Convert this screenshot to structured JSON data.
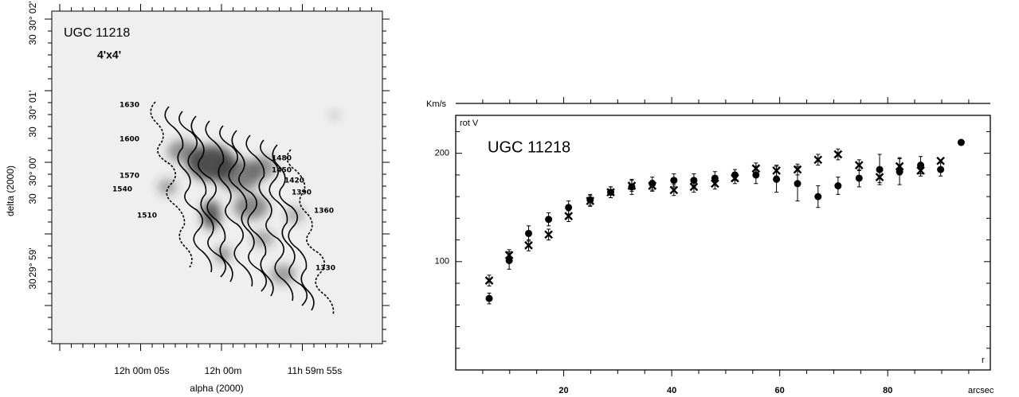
{
  "sky_map": {
    "title": "UGC 11218",
    "size": "4'x4'",
    "y_axis_label": "delta (2000)",
    "x_axis_label": "alpha (2000)",
    "y_tick_labels": [
      "30° 02'",
      "30",
      "30° 01'",
      "30",
      "30° 00'",
      "30",
      "29° 59'",
      "30"
    ],
    "x_tick_labels": [
      "12h 00m 05s",
      "12h 00m",
      "11h 59m 55s"
    ],
    "contour_labels": [
      1630,
      1600,
      1480,
      1450,
      1420,
      1390,
      1360,
      1330,
      1570,
      1540,
      1510
    ]
  },
  "chart_data": {
    "type": "scatter",
    "title": "UGC 11218",
    "y_axis_label": "rot V",
    "y_unit": "Km/s",
    "x_axis_label": "r",
    "x_unit": "arcsec",
    "xlim": [
      0,
      99
    ],
    "ylim": [
      0,
      235
    ],
    "xticks": [
      20,
      40,
      60,
      80
    ],
    "yticks": [
      100,
      200
    ],
    "xminor_ticks": [
      5,
      10,
      15,
      25,
      30,
      35,
      45,
      50,
      55,
      65,
      70,
      75,
      85,
      90,
      95
    ],
    "yminor_ticks": [
      20,
      40,
      60,
      80,
      120,
      140,
      160,
      180,
      220
    ],
    "series": [
      {
        "marker": "circle",
        "color": "#000000",
        "x": [
          6.2,
          9.9,
          13.5,
          17.2,
          20.9,
          24.9,
          28.7,
          32.6,
          36.4,
          40.4,
          44.1,
          48,
          51.7,
          55.6,
          59.4,
          63.3,
          67.1,
          70.8,
          74.7,
          78.5,
          82.2,
          86.1,
          89.8,
          93.6
        ],
        "values": [
          66,
          101,
          126,
          139,
          150,
          157,
          164,
          169,
          172,
          175,
          175,
          177,
          180,
          180,
          176,
          172,
          160,
          170,
          177,
          185,
          183,
          189,
          185,
          210
        ],
        "errors": [
          5,
          8,
          7,
          6,
          6,
          5,
          5,
          7,
          6,
          6,
          6,
          6,
          5,
          8,
          12,
          16,
          10,
          8,
          8,
          14,
          12,
          8,
          6,
          null
        ]
      },
      {
        "marker": "cross",
        "color": "#000000",
        "x": [
          6.2,
          9.9,
          13.5,
          17.2,
          20.9,
          24.9,
          28.7,
          32.6,
          36.4,
          40.4,
          44.1,
          48,
          51.7,
          55.6,
          59.4,
          63.3,
          67.1,
          70.8,
          74.7,
          78.5,
          82.2,
          86.1,
          89.8
        ],
        "values": [
          82.5,
          106,
          115,
          125,
          142,
          156,
          164,
          170,
          170,
          166,
          169,
          172,
          177,
          186,
          184,
          185,
          194,
          199,
          189,
          178,
          188,
          184,
          193
        ],
        "errors": [
          5,
          5,
          5,
          5,
          5,
          5,
          5,
          5,
          5,
          5,
          5,
          5,
          5,
          5,
          5,
          5,
          5,
          5,
          5,
          5,
          8,
          5,
          null
        ]
      }
    ]
  }
}
